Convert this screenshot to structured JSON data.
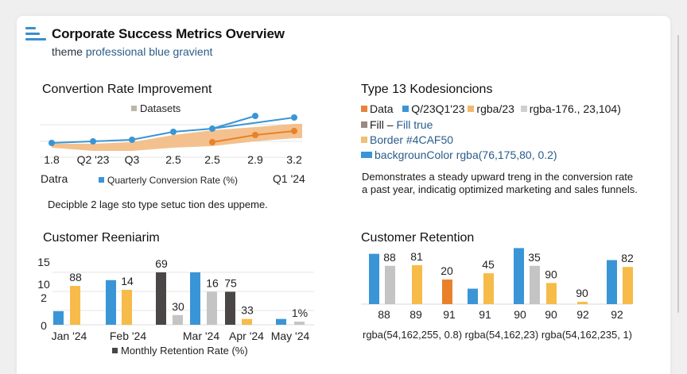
{
  "header": {
    "title": "Corporate Success Metrics Overview",
    "subtitle_prefix": "theme",
    "subtitle_accent": "professional",
    "subtitle_suffix": "blue gravient",
    "icon": "bar-list-icon"
  },
  "conversion": {
    "title": "Convertion Rate Improvement",
    "legend_top": "Datasets",
    "legend_bottom": "Quarterly Conversion Rate (%)",
    "left_label": "Datra",
    "right_label": "Q1 '24",
    "description": "Decipble 2 lage sto type setuc tion des uppeme."
  },
  "type13": {
    "title": "Type 13 Kodesioncions",
    "legend_row1": [
      {
        "label": "Data",
        "color": "#e8823a"
      },
      {
        "label": "Q/23Q1'23",
        "color": "#3a95d6"
      },
      {
        "label": "rgba/23",
        "color": "#f0b870"
      },
      {
        "label": "rgba-176., 23,104)",
        "color": "#cfcfcf"
      }
    ],
    "fill_label": "Fill –",
    "fill_value": "Fill true",
    "fill_color": "#9a8a80",
    "border_label": "Border #4CAF50",
    "border_color": "#f0c070",
    "bg_label": "backgrounColor rgba(76,175,80, 0.2)",
    "bg_color": "#3a95d6",
    "description_line1": "Demonstrates a steady upward treng in the conversion rate",
    "description_line2": "a past year,  indicatig optimized marketing and sales funnels."
  },
  "retention_left": {
    "title": "Customer Reeniarim",
    "legend": "Monthly Retention Rate (%)"
  },
  "retention_right": {
    "title": "Customer Retention",
    "footer_labels": [
      "rgba(54,162,255, 0.8)",
      "rgba(54,162,23)",
      "rgba(54,162,235, 1)"
    ]
  },
  "colors": {
    "blue": "#3a95d6",
    "orange": "#e8822a",
    "orange_fill": "#f2b67a",
    "yellow": "#f6bb48",
    "gray": "#c4c4c4",
    "dark": "#4a4646"
  },
  "chart_data": [
    {
      "type": "line",
      "title": "Convertion Rate Improvement",
      "categories": [
        "1.8",
        "Q2 '23",
        "Q3",
        "2.5",
        "2.5",
        "2.9",
        "3.2"
      ],
      "xlabel_left": "Datra",
      "xlabel_right": "Q1 '24",
      "ylim": [
        0,
        4
      ],
      "grid": true,
      "legend": [
        "Datasets",
        "Quarterly Conversion Rate (%)"
      ],
      "series": [
        {
          "name": "Quarterly Conversion Rate (%)",
          "color": "#3a95d6",
          "values": [
            1.8,
            1.9,
            2.0,
            2.5,
            2.7,
            3.5,
            3.4
          ],
          "branch_from_index": 4
        },
        {
          "name": "Datasets (fill band)",
          "color": "#f2b67a",
          "type": "area",
          "upper": [
            1.75,
            1.75,
            1.85,
            2.3,
            2.6,
            2.8,
            3.0
          ],
          "lower": [
            1.5,
            1.3,
            1.3,
            1.5,
            1.6,
            1.9,
            2.1
          ]
        },
        {
          "name": "Orange series",
          "color": "#e8822a",
          "values": [
            null,
            null,
            null,
            null,
            1.85,
            2.3,
            2.55
          ]
        }
      ]
    },
    {
      "type": "bar",
      "title": "Customer Reeniarim",
      "categories": [
        "Jan '24",
        "Feb '24",
        "Mar '24",
        "Apr '24",
        "May '24"
      ],
      "yticks": [
        "0",
        "2",
        "10",
        "15"
      ],
      "ylim": [
        0,
        15
      ],
      "legend": [
        "Monthly Retention Rate (%)"
      ],
      "legend_position": "bottom",
      "bars": [
        {
          "group": "Jan '24",
          "color": "#3a95d6",
          "value": 3.5,
          "label": ""
        },
        {
          "group": "Jan '24",
          "color": "#f6bb48",
          "value": 10,
          "label": "88"
        },
        {
          "group": "Feb '24",
          "color": "#3a95d6",
          "value": 11.5,
          "label": ""
        },
        {
          "group": "Feb '24",
          "color": "#f6bb48",
          "value": 9,
          "label": "14"
        },
        {
          "group": "Mar '24",
          "color": "#4a4646",
          "value": 13.5,
          "label": "69"
        },
        {
          "group": "Mar '24",
          "color": "#c4c4c4",
          "value": 2.5,
          "label": "30"
        },
        {
          "group": "Mar '24",
          "color": "#3a95d6",
          "value": 13.5,
          "label": ""
        },
        {
          "group": "Mar '24",
          "color": "#c4c4c4",
          "value": 8.5,
          "label": "16"
        },
        {
          "group": "Apr '24",
          "color": "#4a4646",
          "value": 8.5,
          "label": "75"
        },
        {
          "group": "Apr '24",
          "color": "#f6bb48",
          "value": 1.5,
          "label": "33"
        },
        {
          "group": "May '24",
          "color": "#3a95d6",
          "value": 1.5,
          "label": ""
        },
        {
          "group": "May '24",
          "color": "#c4c4c4",
          "value": 0.8,
          "label": "1%"
        }
      ]
    },
    {
      "type": "bar",
      "title": "Customer Retention",
      "categories": [
        "88",
        "89",
        "91",
        "91",
        "90",
        "90",
        "92",
        "92"
      ],
      "ylim": [
        0,
        100
      ],
      "legend": [
        "rgba(54,162,255, 0.8)",
        "rgba(54,162,23)",
        "rgba(54,162,235, 1)"
      ],
      "legend_position": "bottom",
      "bars": [
        {
          "color": "#3a95d6",
          "value": 88,
          "label": ""
        },
        {
          "color": "#c4c4c4",
          "value": 67,
          "label": "88"
        },
        {
          "color": "#f6bb48",
          "value": 68,
          "label": "81"
        },
        {
          "color": "#e8822a",
          "value": 43,
          "label": "20"
        },
        {
          "color": "#3a95d6",
          "value": 27,
          "label": ""
        },
        {
          "color": "#f6bb48",
          "value": 54,
          "label": "45"
        },
        {
          "color": "#3a95d6",
          "value": 98,
          "label": ""
        },
        {
          "color": "#c4c4c4",
          "value": 67,
          "label": "35"
        },
        {
          "color": "#f6bb48",
          "value": 37,
          "label": "90"
        },
        {
          "color": "#f6bb48",
          "value": 4,
          "label": "90"
        },
        {
          "color": "#3a95d6",
          "value": 77,
          "label": ""
        },
        {
          "color": "#f6bb48",
          "value": 65,
          "label": "82"
        }
      ]
    }
  ]
}
